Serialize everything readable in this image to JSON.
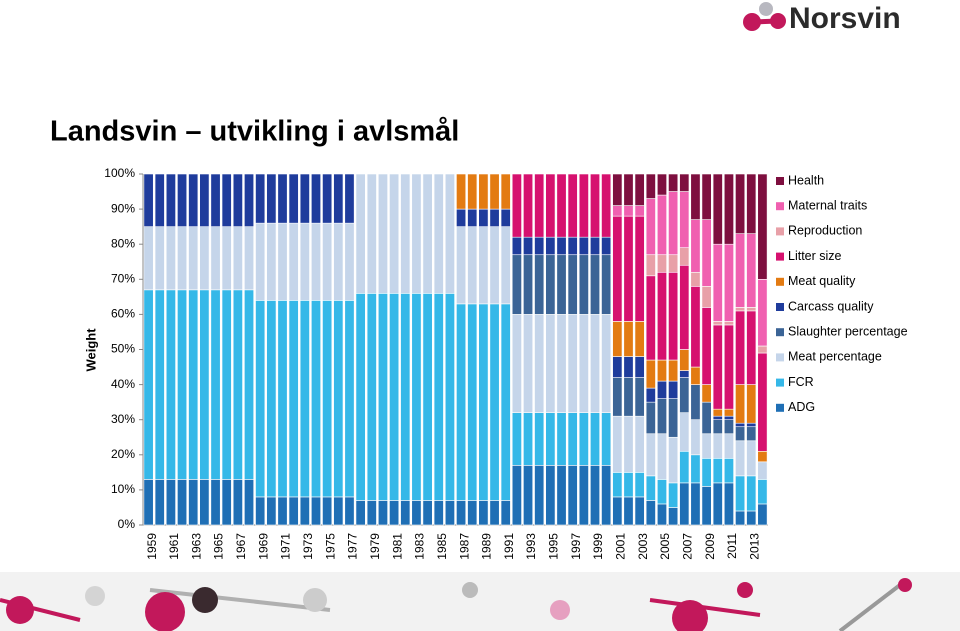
{
  "logo": "Norsvin",
  "chart_data": {
    "type": "stacked_bar",
    "title": "Landsvin – utvikling i avlsmål",
    "y_label": "Weight",
    "categories": [
      "1959",
      null,
      "1961",
      null,
      "1963",
      null,
      "1965",
      null,
      "1967",
      null,
      "1969",
      null,
      "1971",
      null,
      "1973",
      null,
      "1975",
      null,
      "1977",
      null,
      "1979",
      null,
      "1981",
      null,
      "1983",
      null,
      "1985",
      null,
      "1987",
      null,
      "1989",
      null,
      "1991",
      null,
      "1993",
      null,
      "1995",
      null,
      "1997",
      null,
      "1999",
      null,
      "2001",
      null,
      "2003",
      null,
      "2005",
      null,
      "2007",
      null,
      "2009",
      null,
      "2011",
      null,
      "2013",
      null
    ],
    "ylim": [
      0,
      100
    ],
    "yticks": [
      {
        "value": 0,
        "label": "0%"
      },
      {
        "value": 10,
        "label": "10%"
      },
      {
        "value": 20,
        "label": "20%"
      },
      {
        "value": 30,
        "label": "30%"
      },
      {
        "value": 40,
        "label": "40%"
      },
      {
        "value": 50,
        "label": "50%"
      },
      {
        "value": 60,
        "label": "60%"
      },
      {
        "value": 70,
        "label": "70%"
      },
      {
        "value": 80,
        "label": "80%"
      },
      {
        "value": 90,
        "label": "90%"
      },
      {
        "value": 100,
        "label": "100%"
      }
    ],
    "legend": "right",
    "series": [
      {
        "name": "ADG",
        "color": "#1f6fb5",
        "values": [
          13,
          13,
          13,
          13,
          13,
          13,
          13,
          13,
          13,
          13,
          8,
          8,
          8,
          8,
          8,
          8,
          8,
          8,
          8,
          7,
          7,
          7,
          7,
          7,
          7,
          7,
          7,
          7,
          7,
          7,
          7,
          7,
          7,
          17,
          17,
          17,
          17,
          17,
          17,
          17,
          17,
          17,
          8,
          8,
          8,
          7,
          6,
          5,
          12,
          12,
          11,
          12,
          12,
          4,
          4,
          6
        ]
      },
      {
        "name": "FCR",
        "color": "#35b8e8",
        "values": [
          54,
          54,
          54,
          54,
          54,
          54,
          54,
          54,
          54,
          54,
          56,
          56,
          56,
          56,
          56,
          56,
          56,
          56,
          56,
          59,
          59,
          59,
          59,
          59,
          59,
          59,
          59,
          59,
          56,
          56,
          56,
          56,
          56,
          15,
          15,
          15,
          15,
          15,
          15,
          15,
          15,
          15,
          7,
          7,
          7,
          7,
          7,
          7,
          9,
          8,
          8,
          7,
          7,
          10,
          10,
          7
        ]
      },
      {
        "name": "Meat percentage",
        "color": "#c5d5ea",
        "values": [
          18,
          18,
          18,
          18,
          18,
          18,
          18,
          18,
          18,
          18,
          22,
          22,
          22,
          22,
          22,
          22,
          22,
          22,
          22,
          34,
          34,
          34,
          34,
          34,
          34,
          34,
          34,
          34,
          22,
          22,
          22,
          22,
          22,
          28,
          28,
          28,
          28,
          28,
          28,
          28,
          28,
          28,
          16,
          16,
          16,
          12,
          13,
          13,
          11,
          10,
          7,
          7,
          7,
          10,
          10,
          5
        ]
      },
      {
        "name": "Slaughter percentage",
        "color": "#3b6496",
        "values": [
          0,
          0,
          0,
          0,
          0,
          0,
          0,
          0,
          0,
          0,
          0,
          0,
          0,
          0,
          0,
          0,
          0,
          0,
          0,
          0,
          0,
          0,
          0,
          0,
          0,
          0,
          0,
          0,
          0,
          0,
          0,
          0,
          0,
          17,
          17,
          17,
          17,
          17,
          17,
          17,
          17,
          17,
          11,
          11,
          11,
          9,
          10,
          11,
          10,
          10,
          9,
          4,
          4,
          4,
          4,
          0
        ]
      },
      {
        "name": "Carcass quality",
        "color": "#1f3c9c",
        "values": [
          15,
          15,
          15,
          15,
          15,
          15,
          15,
          15,
          15,
          15,
          14,
          14,
          14,
          14,
          14,
          14,
          14,
          14,
          14,
          0,
          0,
          0,
          0,
          0,
          0,
          0,
          0,
          0,
          5,
          5,
          5,
          5,
          5,
          5,
          5,
          5,
          5,
          5,
          5,
          5,
          5,
          5,
          6,
          6,
          6,
          4,
          5,
          5,
          2,
          0,
          0,
          1,
          1,
          1,
          1,
          0
        ]
      },
      {
        "name": "Meat quality",
        "color": "#e37b12",
        "values": [
          0,
          0,
          0,
          0,
          0,
          0,
          0,
          0,
          0,
          0,
          0,
          0,
          0,
          0,
          0,
          0,
          0,
          0,
          0,
          0,
          0,
          0,
          0,
          0,
          0,
          0,
          0,
          0,
          10,
          10,
          10,
          10,
          10,
          0,
          0,
          0,
          0,
          0,
          0,
          0,
          0,
          0,
          10,
          10,
          10,
          8,
          6,
          6,
          6,
          5,
          5,
          2,
          2,
          11,
          11,
          3
        ]
      },
      {
        "name": "Litter size",
        "color": "#d6116f",
        "values": [
          0,
          0,
          0,
          0,
          0,
          0,
          0,
          0,
          0,
          0,
          0,
          0,
          0,
          0,
          0,
          0,
          0,
          0,
          0,
          0,
          0,
          0,
          0,
          0,
          0,
          0,
          0,
          0,
          0,
          0,
          0,
          0,
          0,
          18,
          18,
          18,
          18,
          18,
          18,
          18,
          18,
          18,
          30,
          30,
          30,
          24,
          25,
          25,
          24,
          23,
          22,
          24,
          24,
          21,
          21,
          28
        ]
      },
      {
        "name": "Reproduction",
        "color": "#e8a0a8",
        "values": [
          0,
          0,
          0,
          0,
          0,
          0,
          0,
          0,
          0,
          0,
          0,
          0,
          0,
          0,
          0,
          0,
          0,
          0,
          0,
          0,
          0,
          0,
          0,
          0,
          0,
          0,
          0,
          0,
          0,
          0,
          0,
          0,
          0,
          0,
          0,
          0,
          0,
          0,
          0,
          0,
          0,
          0,
          0,
          0,
          0,
          6,
          5,
          5,
          5,
          4,
          6,
          1,
          1,
          1,
          1,
          2
        ]
      },
      {
        "name": "Maternal traits",
        "color": "#f060b0",
        "values": [
          0,
          0,
          0,
          0,
          0,
          0,
          0,
          0,
          0,
          0,
          0,
          0,
          0,
          0,
          0,
          0,
          0,
          0,
          0,
          0,
          0,
          0,
          0,
          0,
          0,
          0,
          0,
          0,
          0,
          0,
          0,
          0,
          0,
          0,
          0,
          0,
          0,
          0,
          0,
          0,
          0,
          0,
          3,
          3,
          3,
          16,
          17,
          18,
          16,
          15,
          19,
          22,
          22,
          21,
          21,
          19
        ]
      },
      {
        "name": "Health",
        "color": "#7e0f3f",
        "values": [
          0,
          0,
          0,
          0,
          0,
          0,
          0,
          0,
          0,
          0,
          0,
          0,
          0,
          0,
          0,
          0,
          0,
          0,
          0,
          0,
          0,
          0,
          0,
          0,
          0,
          0,
          0,
          0,
          0,
          0,
          0,
          0,
          0,
          0,
          0,
          0,
          0,
          0,
          0,
          0,
          0,
          0,
          9,
          9,
          9,
          7,
          6,
          5,
          5,
          13,
          13,
          20,
          20,
          17,
          17,
          30
        ]
      }
    ]
  }
}
